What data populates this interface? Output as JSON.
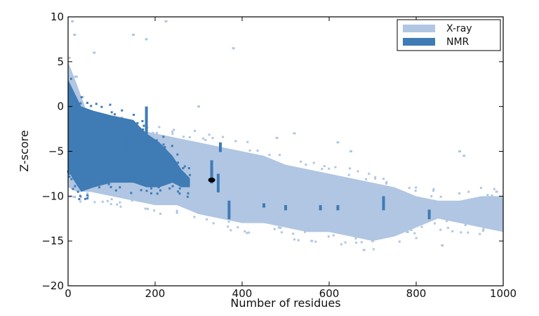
{
  "chart_data": {
    "type": "scatter",
    "title": "",
    "xlabel": "Number of residues",
    "ylabel": "Z-score",
    "xlim": [
      0,
      1000
    ],
    "ylim": [
      -20,
      10
    ],
    "xticks": [
      0,
      200,
      400,
      600,
      800,
      1000
    ],
    "yticks": [
      -20,
      -15,
      -10,
      -5,
      0,
      5,
      10
    ],
    "xtick_labels": [
      "0",
      "200",
      "400",
      "600",
      "800",
      "1000"
    ],
    "ytick_labels": [
      "−20",
      "−15",
      "−10",
      "−5",
      "0",
      "5",
      "10"
    ],
    "grid": false,
    "legend_position": "top-right",
    "series": [
      {
        "name": "X-ray",
        "color": "#b0c6e2",
        "band": [
          [
            0,
            -9,
            5
          ],
          [
            20,
            -9.5,
            2.5
          ],
          [
            50,
            -9.5,
            -1.5
          ],
          [
            100,
            -10,
            -2
          ],
          [
            150,
            -10.5,
            -2.5
          ],
          [
            200,
            -11,
            -3
          ],
          [
            250,
            -11,
            -3.5
          ],
          [
            300,
            -12,
            -4
          ],
          [
            350,
            -12.5,
            -4.5
          ],
          [
            400,
            -13,
            -5
          ],
          [
            450,
            -13,
            -5.5
          ],
          [
            500,
            -13.5,
            -6.5
          ],
          [
            550,
            -14,
            -7
          ],
          [
            600,
            -14,
            -7.5
          ],
          [
            650,
            -14.5,
            -8
          ],
          [
            700,
            -15,
            -8.5
          ],
          [
            750,
            -14.5,
            -9
          ],
          [
            800,
            -13.5,
            -10
          ],
          [
            850,
            -12.5,
            -10.5
          ],
          [
            900,
            -13,
            -10.5
          ],
          [
            950,
            -13.5,
            -10
          ],
          [
            1000,
            -14,
            -10
          ]
        ],
        "outliers": [
          [
            10,
            9.5
          ],
          [
            15,
            8
          ],
          [
            60,
            6
          ],
          [
            150,
            8
          ],
          [
            180,
            7.5
          ],
          [
            225,
            9.5
          ],
          [
            300,
            0
          ],
          [
            380,
            6.5
          ],
          [
            480,
            -3.5
          ],
          [
            520,
            -3
          ],
          [
            650,
            -5
          ],
          [
            680,
            -16
          ],
          [
            700,
            -15
          ],
          [
            780,
            -14
          ],
          [
            860,
            -15.5
          ],
          [
            900,
            -5
          ],
          [
            910,
            -5.5
          ],
          [
            950,
            -10.5
          ],
          [
            985,
            -9.5
          ],
          [
            560,
            -15
          ],
          [
            620,
            -4
          ]
        ]
      },
      {
        "name": "NMR",
        "color": "#3f7bb5",
        "band": [
          [
            0,
            -7,
            3
          ],
          [
            10,
            -8,
            2
          ],
          [
            30,
            -9.5,
            0
          ],
          [
            60,
            -9,
            -0.5
          ],
          [
            100,
            -8.5,
            -1
          ],
          [
            150,
            -8.5,
            -1.5
          ],
          [
            180,
            -9,
            -3
          ],
          [
            210,
            -9,
            -4
          ],
          [
            240,
            -8.5,
            -5.5
          ],
          [
            260,
            -9,
            -7
          ],
          [
            280,
            -9,
            -8
          ]
        ],
        "spikes": [
          [
            90,
            -6,
            -4
          ],
          [
            140,
            -5.5,
            -3
          ],
          [
            180,
            0,
            -3
          ],
          [
            330,
            -8.5,
            -6
          ],
          [
            345,
            -9.5,
            -7.5
          ],
          [
            370,
            -12.5,
            -10.5
          ],
          [
            350,
            -5,
            -4
          ],
          [
            725,
            -11.5,
            -10
          ],
          [
            830,
            -12.5,
            -11.5
          ],
          [
            580,
            -11.5,
            -11
          ],
          [
            620,
            -11.5,
            -11
          ],
          [
            450,
            -11.2,
            -10.8
          ],
          [
            500,
            -11.5,
            -11
          ]
        ]
      }
    ],
    "highlight_point": {
      "x": 330,
      "y": -8.2,
      "color": "#000000"
    }
  }
}
